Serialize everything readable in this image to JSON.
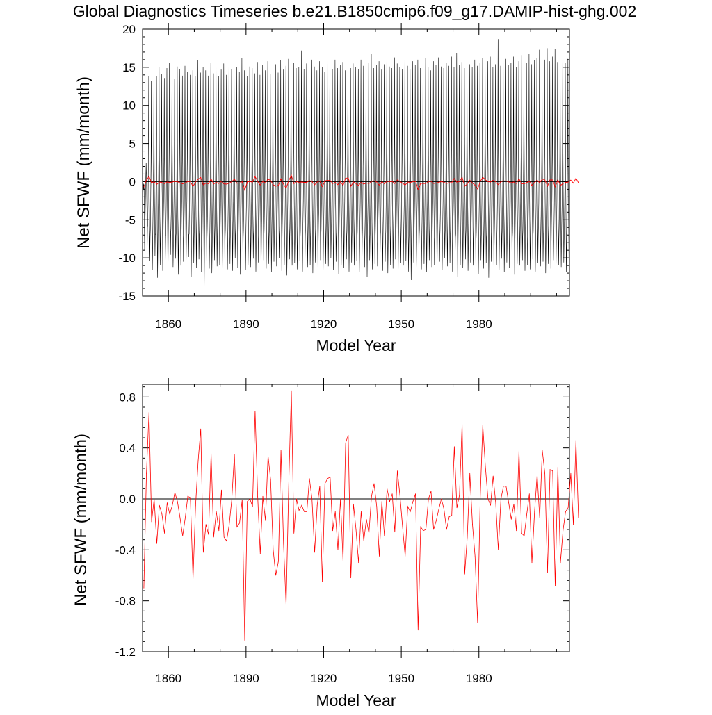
{
  "figure_title": "Global Diagnostics Timeseries b.e21.B1850cmip6.f09_g17.DAMIP-hist-ghg.002",
  "colors": {
    "monthly": "#000000",
    "annual": "#ff0000",
    "axes": "#000000",
    "zero_line": "#000000"
  },
  "chart_data": [
    {
      "type": "line",
      "title": "Global Diagnostics Timeseries b.e21.B1850cmip6.f09_g17.DAMIP-hist-ghg.002",
      "xlabel": "Model Year",
      "ylabel": "Net SFWF (mm/month)",
      "xlim": [
        1850,
        2015
      ],
      "ylim": [
        -15,
        20
      ],
      "x_ticks": [
        1860,
        1890,
        1920,
        1950,
        1980
      ],
      "x_tick_labels": [
        "1860",
        "1890",
        "1920",
        "1950",
        "1980"
      ],
      "y_ticks": [
        -15,
        -10,
        -5,
        0,
        5,
        10,
        15,
        20
      ],
      "y_tick_labels": [
        "-15",
        "-10",
        "-5",
        "0",
        "5",
        "10",
        "15",
        "20"
      ],
      "reference_line": 0,
      "series": [
        {
          "role": "monthly",
          "color": "#000000",
          "note_values": "monthly series; yearly seasonal maxima and minima estimated from the plot",
          "x_start": 1850,
          "x_step": 1,
          "annual_max": [
            -1.0,
            2.5,
            13.8,
            13.2,
            14.5,
            13.8,
            15.0,
            14.1,
            13.6,
            14.9,
            15.6,
            14.2,
            13.5,
            15.1,
            14.8,
            13.9,
            15.2,
            14.4,
            14.0,
            14.6,
            13.8,
            15.9,
            14.3,
            15.0,
            14.6,
            13.9,
            15.6,
            14.2,
            15.1,
            13.8,
            14.7,
            15.5,
            14.0,
            15.2,
            14.8,
            13.9,
            15.0,
            14.4,
            16.2,
            14.6,
            13.8,
            15.1,
            14.9,
            14.2,
            15.7,
            14.0,
            15.3,
            14.6,
            15.8,
            14.1,
            14.9,
            15.4,
            14.3,
            15.9,
            14.7,
            15.2,
            16.1,
            14.5,
            15.6,
            14.9,
            15.0,
            17.2,
            14.8,
            15.5,
            14.4,
            16.0,
            15.1,
            14.6,
            15.8,
            15.0,
            14.4,
            15.9,
            15.2,
            14.8,
            16.0,
            14.9,
            15.3,
            15.7,
            14.6,
            16.1,
            14.9,
            15.5,
            15.0,
            14.8,
            16.0,
            15.2,
            14.6,
            15.6,
            16.8,
            14.9,
            15.3,
            15.8,
            14.7,
            15.4,
            16.0,
            15.1,
            14.9,
            16.3,
            15.5,
            15.0,
            14.8,
            16.1,
            15.2,
            14.7,
            15.8,
            15.3,
            16.0,
            14.9,
            15.5,
            16.2,
            15.0,
            14.6,
            15.8,
            15.3,
            16.3,
            15.1,
            14.9,
            15.6,
            15.2,
            16.4,
            15.0,
            16.9,
            15.3,
            15.7,
            14.9,
            16.1,
            15.4,
            15.0,
            16.0,
            15.2,
            15.6,
            16.2,
            15.1,
            15.8,
            16.4,
            15.0,
            15.4,
            18.7,
            15.2,
            15.9,
            16.1,
            15.3,
            15.6,
            16.4,
            15.0,
            15.8,
            16.6,
            15.2,
            15.6,
            16.8,
            15.4,
            15.9,
            16.2,
            17.3,
            15.5,
            16.0,
            17.5,
            15.8,
            16.4,
            17.4,
            15.7,
            16.3,
            16.0,
            15.6,
            16.1,
            16.3
          ],
          "annual_min": [
            -9.0,
            -8.5,
            -10.4,
            -11.6,
            -9.8,
            -12.6,
            -10.9,
            -11.7,
            -10.3,
            -12.4,
            -9.6,
            -11.2,
            -10.1,
            -12.2,
            -11.0,
            -10.5,
            -11.8,
            -9.9,
            -12.5,
            -10.7,
            -11.3,
            -10.2,
            -11.9,
            -14.8,
            -10.6,
            -11.4,
            -12.0,
            -10.3,
            -11.1,
            -10.9,
            -12.1,
            -10.2,
            -11.5,
            -10.8,
            -11.7,
            -10.0,
            -11.3,
            -12.2,
            -10.4,
            -11.6,
            -10.9,
            -11.2,
            -10.1,
            -11.8,
            -10.6,
            -12.0,
            -10.3,
            -11.4,
            -10.8,
            -11.9,
            -10.5,
            -11.1,
            -10.0,
            -11.7,
            -10.9,
            -12.3,
            -10.2,
            -11.0,
            -10.7,
            -11.5,
            -10.4,
            -11.8,
            -10.1,
            -11.2,
            -10.9,
            -12.0,
            -10.6,
            -11.4,
            -10.3,
            -11.7,
            -10.8,
            -11.1,
            -10.0,
            -11.6,
            -10.5,
            -12.1,
            -10.9,
            -11.3,
            -10.2,
            -11.8,
            -10.6,
            -11.0,
            -10.4,
            -11.9,
            -10.7,
            -11.2,
            -12.5,
            -10.3,
            -11.5,
            -10.8,
            -11.1,
            -10.0,
            -11.7,
            -10.5,
            -12.0,
            -10.9,
            -11.4,
            -10.2,
            -11.6,
            -10.7,
            -11.0,
            -10.4,
            -11.8,
            -12.9,
            -10.6,
            -11.3,
            -10.1,
            -11.5,
            -10.8,
            -11.9,
            -10.3,
            -11.2,
            -10.9,
            -12.2,
            -10.5,
            -11.6,
            -10.0,
            -11.1,
            -10.7,
            -11.8,
            -10.4,
            -12.5,
            -10.9,
            -11.3,
            -10.2,
            -11.7,
            -10.6,
            -11.0,
            -10.8,
            -12.1,
            -10.3,
            -11.4,
            -10.7,
            -12.6,
            -10.5,
            -11.2,
            -10.9,
            -11.6,
            -10.1,
            -11.9,
            -10.6,
            -11.3,
            -10.4,
            -12.2,
            -10.8,
            -11.0,
            -10.3,
            -11.7,
            -10.9,
            -11.5,
            -10.2,
            -11.8,
            -10.7,
            -11.1,
            -10.5,
            -12.0,
            -10.8,
            -11.4,
            -10.3,
            -11.6,
            -10.9,
            -11.2,
            -10.6,
            -11.9,
            -10.4,
            -11.5
          ]
        },
        {
          "role": "annual mean",
          "color": "#ff0000",
          "x_start": 1850,
          "x_step": 1,
          "values": [
            -0.7,
            0.2,
            0.68,
            -0.18,
            0.0,
            -0.35,
            -0.05,
            -0.12,
            -0.27,
            -0.03,
            -0.12,
            -0.05,
            0.05,
            -0.02,
            -0.15,
            -0.29,
            -0.15,
            0.02,
            0.01,
            -0.63,
            -0.05,
            0.3,
            0.55,
            -0.42,
            -0.2,
            -0.28,
            0.36,
            -0.3,
            -0.1,
            -0.25,
            0.07,
            -0.3,
            -0.33,
            -0.2,
            0.0,
            0.35,
            -0.22,
            -0.19,
            -0.01,
            -1.11,
            -0.02,
            0.0,
            -0.06,
            0.69,
            0.02,
            -0.43,
            0.02,
            -0.17,
            0.34,
            0.15,
            -0.4,
            -0.6,
            -0.49,
            0.38,
            -0.35,
            -0.84,
            0.1,
            0.85,
            -0.27,
            0.0,
            -0.09,
            -0.05,
            -0.1,
            -0.1,
            0.16,
            0.0,
            -0.42,
            -0.05,
            0.1,
            -0.65,
            0.12,
            0.16,
            0.17,
            -0.25,
            -0.1,
            -0.4,
            0.0,
            -0.49,
            0.44,
            0.5,
            -0.62,
            -0.04,
            -0.24,
            -0.5,
            -0.1,
            -0.33,
            -0.16,
            -0.27,
            0.02,
            0.12,
            -0.06,
            -0.45,
            -0.02,
            -0.29,
            0.08,
            -0.02,
            0.04,
            -0.26,
            0.22,
            0.02,
            -0.22,
            -0.45,
            -0.06,
            -0.1,
            -0.02,
            0.04,
            -1.03,
            -0.22,
            -0.25,
            -0.24,
            0.0,
            0.06,
            -0.24,
            -0.17,
            -0.08,
            0.0,
            -0.08,
            -0.24,
            -0.14,
            -0.13,
            0.41,
            -0.07,
            0.03,
            0.59,
            -0.59,
            -0.3,
            0.2,
            -0.2,
            -0.45,
            -0.97,
            0.0,
            0.58,
            0.25,
            0.0,
            -0.05,
            0.18,
            -0.03,
            -0.4,
            0.0,
            0.1,
            0.1,
            -0.03,
            -0.16,
            -0.04,
            -0.25,
            0.38,
            -0.27,
            -0.29,
            -0.12,
            0.04,
            -0.5,
            -0.1,
            0.19,
            -0.15,
            0.38,
            0.2,
            -0.58,
            0.23,
            0.22,
            -0.68,
            0.25,
            -0.5,
            -0.25,
            -0.1,
            -0.07,
            0.2,
            -0.2,
            0.46,
            -0.15
          ]
        }
      ]
    },
    {
      "type": "line",
      "xlabel": "Model Year",
      "ylabel": "Net SFWF (mm/month)",
      "xlim": [
        1850,
        2015
      ],
      "ylim": [
        -1.2,
        0.9
      ],
      "x_ticks": [
        1860,
        1890,
        1920,
        1950,
        1980
      ],
      "x_tick_labels": [
        "1860",
        "1890",
        "1920",
        "1950",
        "1980"
      ],
      "y_ticks": [
        -1.2,
        -0.8,
        -0.4,
        0.0,
        0.4,
        0.8
      ],
      "y_tick_labels": [
        "-1.2",
        "-0.8",
        "-0.4",
        "0.0",
        "0.4",
        "0.8"
      ],
      "reference_line": 0,
      "series": [
        {
          "role": "annual mean",
          "color": "#ff0000",
          "x_start": 1850,
          "x_step": 1,
          "values": [
            -0.7,
            0.2,
            0.68,
            -0.18,
            0.0,
            -0.35,
            -0.05,
            -0.12,
            -0.27,
            -0.03,
            -0.12,
            -0.05,
            0.05,
            -0.02,
            -0.15,
            -0.29,
            -0.15,
            0.02,
            0.01,
            -0.63,
            -0.05,
            0.3,
            0.55,
            -0.42,
            -0.2,
            -0.28,
            0.36,
            -0.3,
            -0.1,
            -0.25,
            0.07,
            -0.3,
            -0.33,
            -0.2,
            0.0,
            0.35,
            -0.22,
            -0.19,
            -0.01,
            -1.11,
            -0.02,
            0.0,
            -0.06,
            0.69,
            0.02,
            -0.43,
            0.02,
            -0.17,
            0.34,
            0.15,
            -0.4,
            -0.6,
            -0.49,
            0.38,
            -0.35,
            -0.84,
            0.1,
            0.85,
            -0.27,
            0.0,
            -0.09,
            -0.05,
            -0.1,
            -0.1,
            0.16,
            0.0,
            -0.42,
            -0.05,
            0.1,
            -0.65,
            0.12,
            0.16,
            0.17,
            -0.25,
            -0.1,
            -0.4,
            0.0,
            -0.49,
            0.44,
            0.5,
            -0.62,
            -0.04,
            -0.24,
            -0.5,
            -0.1,
            -0.33,
            -0.16,
            -0.27,
            0.02,
            0.12,
            -0.06,
            -0.45,
            -0.02,
            -0.29,
            0.08,
            -0.02,
            0.04,
            -0.26,
            0.22,
            0.02,
            -0.22,
            -0.45,
            -0.06,
            -0.1,
            -0.02,
            0.04,
            -1.03,
            -0.22,
            -0.25,
            -0.24,
            0.0,
            0.06,
            -0.24,
            -0.17,
            -0.08,
            0.0,
            -0.08,
            -0.24,
            -0.14,
            -0.13,
            0.41,
            -0.07,
            0.03,
            0.59,
            -0.59,
            -0.3,
            0.2,
            -0.2,
            -0.45,
            -0.97,
            0.0,
            0.58,
            0.25,
            0.0,
            -0.05,
            0.18,
            -0.03,
            -0.4,
            0.0,
            0.1,
            0.1,
            -0.03,
            -0.16,
            -0.04,
            -0.25,
            0.38,
            -0.27,
            -0.29,
            -0.12,
            0.04,
            -0.5,
            -0.1,
            0.19,
            -0.15,
            0.38,
            0.2,
            -0.58,
            0.23,
            0.22,
            -0.68,
            0.25,
            -0.5,
            -0.25,
            -0.1,
            -0.07,
            0.2,
            -0.2,
            0.46,
            -0.15
          ]
        }
      ]
    }
  ]
}
